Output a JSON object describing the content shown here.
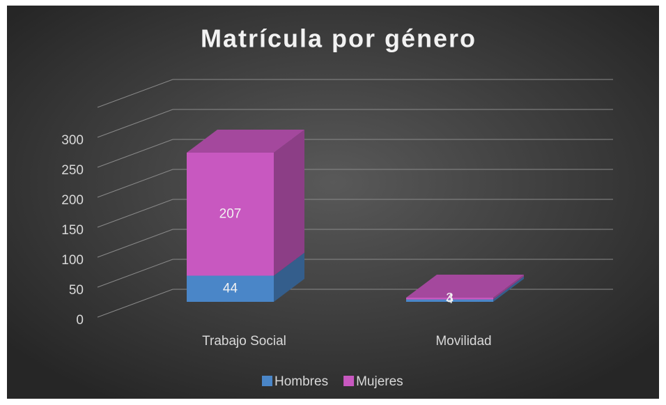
{
  "chart_data": {
    "type": "bar3d_stacked",
    "title": "Matrícula por género",
    "categories": [
      "Trabajo Social",
      "Movilidad"
    ],
    "series": [
      {
        "name": "Hombres",
        "color": "#4a86c8",
        "values": [
          44,
          4
        ]
      },
      {
        "name": "Mujeres",
        "color": "#c858c0",
        "values": [
          207,
          3
        ]
      }
    ],
    "ylim": [
      0,
      350
    ],
    "yticks": [
      0,
      50,
      100,
      150,
      200,
      250,
      300
    ],
    "grid": true,
    "legend": "bottom"
  }
}
